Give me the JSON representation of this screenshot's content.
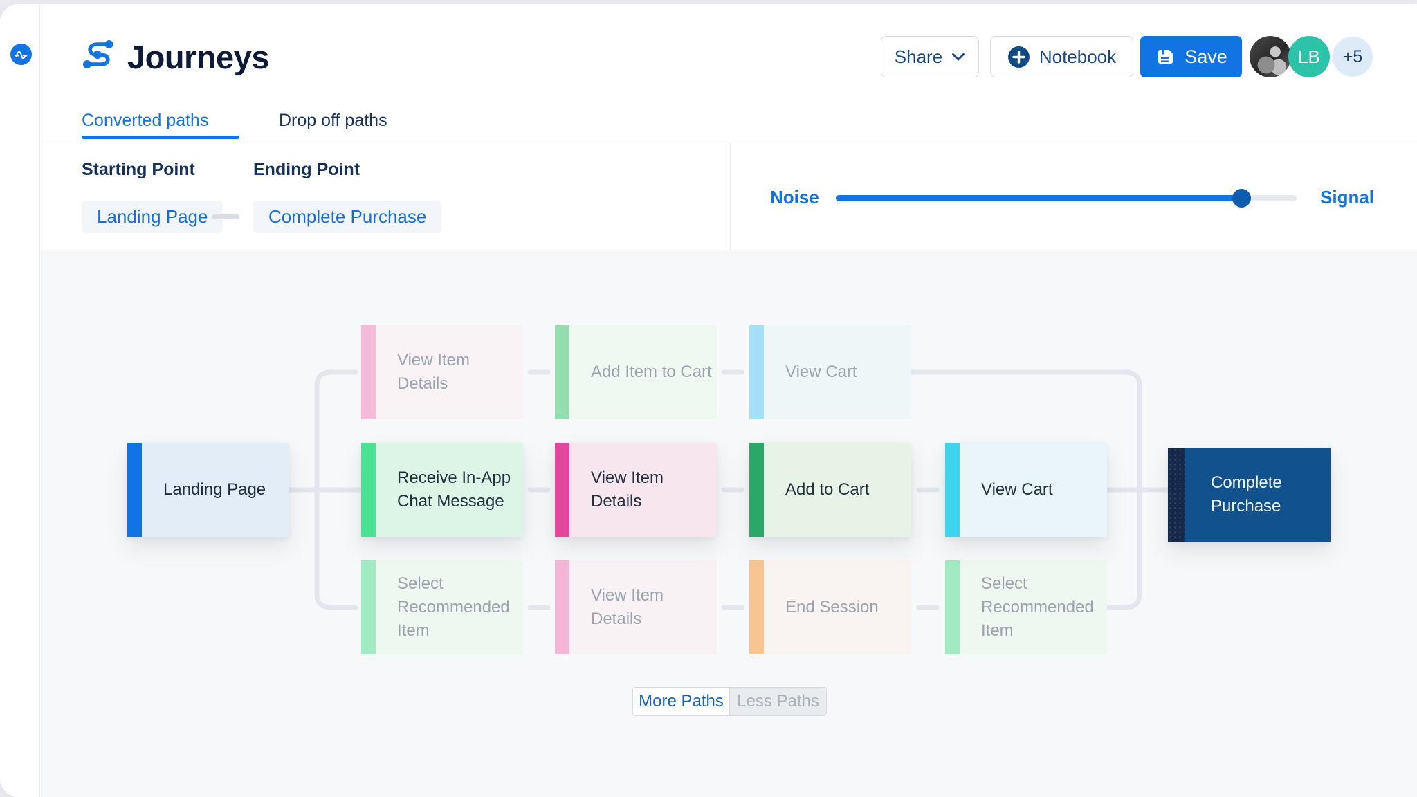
{
  "app": {
    "accent_color": "#1274e2",
    "rail_icon": "amplitude-logo-icon"
  },
  "header": {
    "logo_icon": "journey-path-icon",
    "title": "Journeys",
    "share": {
      "label": "Share",
      "icon": "chevron-down-icon"
    },
    "notebook": {
      "label": "Notebook",
      "icon": "plus-circle-icon"
    },
    "save": {
      "label": "Save",
      "icon": "floppy-disk-icon",
      "bg": "#1274e2"
    },
    "avatars": {
      "photo": "grayscale-user-photo",
      "initials": "LB",
      "initials_bg": "#2cc3a9",
      "overflow": "+5",
      "overflow_bg": "#ddeaf8"
    }
  },
  "tabs": [
    {
      "label": "Converted paths",
      "active": true
    },
    {
      "label": "Drop off paths",
      "active": false
    }
  ],
  "filters": {
    "starting_point": {
      "label": "Starting Point",
      "value": "Landing Page"
    },
    "ending_point": {
      "label": "Ending Point",
      "value": "Complete Purchase"
    },
    "slider": {
      "left_label": "Noise",
      "right_label": "Signal",
      "value_pct": 88,
      "fill_color": "#1274e2",
      "handle_color": "#0d5cae",
      "track_color": "#e5e8ec"
    }
  },
  "journey": {
    "start": {
      "label": "Landing Page",
      "bar": "#1274e2",
      "body": "#e2edf8",
      "text": "#212e3c"
    },
    "end": {
      "label": "Complete Purchase",
      "bar": "#16294b",
      "body": "#11528d",
      "text": "#f2f6fa"
    },
    "connector_color": "#e3e7ed",
    "rows": [
      {
        "emphasis": false,
        "nodes": [
          {
            "label": "View Item Details",
            "bar": "#f5b9d9",
            "body": "#faf3f6",
            "text": "#9aa4af"
          },
          {
            "label": "Add Item to Cart",
            "bar": "#95dcae",
            "body": "#f0f8f2",
            "text": "#9aa4af"
          },
          {
            "label": "View Cart",
            "bar": "#a6e0f8",
            "body": "#eff6f8",
            "text": "#9aa4af"
          }
        ]
      },
      {
        "emphasis": true,
        "nodes": [
          {
            "label": "Receive In-App Chat Message",
            "bar": "#4ae396",
            "body": "#dcf5e7",
            "text": "#22303e"
          },
          {
            "label": "View Item Details",
            "bar": "#e2479d",
            "body": "#f8e6ef",
            "text": "#22303e"
          },
          {
            "label": "Add to Cart",
            "bar": "#2ba767",
            "body": "#e6f3e6",
            "text": "#22303e"
          },
          {
            "label": "View Cart",
            "bar": "#3cd4ee",
            "body": "#e9f5f8",
            "text": "#22303e"
          }
        ]
      },
      {
        "emphasis": false,
        "nodes": [
          {
            "label": "Select Recommended Item",
            "bar": "#a0ebc1",
            "body": "#ecf8f0",
            "text": "#9aa4af"
          },
          {
            "label": "View Item Details",
            "bar": "#f4b6d7",
            "body": "#f9f2f5",
            "text": "#9aa4af"
          },
          {
            "label": "End Session",
            "bar": "#f8c492",
            "body": "#f9f4f1",
            "text": "#9aa4af"
          },
          {
            "label": "Select Recommended Item",
            "bar": "#a0ebc1",
            "body": "#ecf8f0",
            "text": "#9aa4af"
          }
        ]
      }
    ]
  },
  "paths_toggle": {
    "more_label": "More Paths",
    "less_label": "Less Paths"
  }
}
